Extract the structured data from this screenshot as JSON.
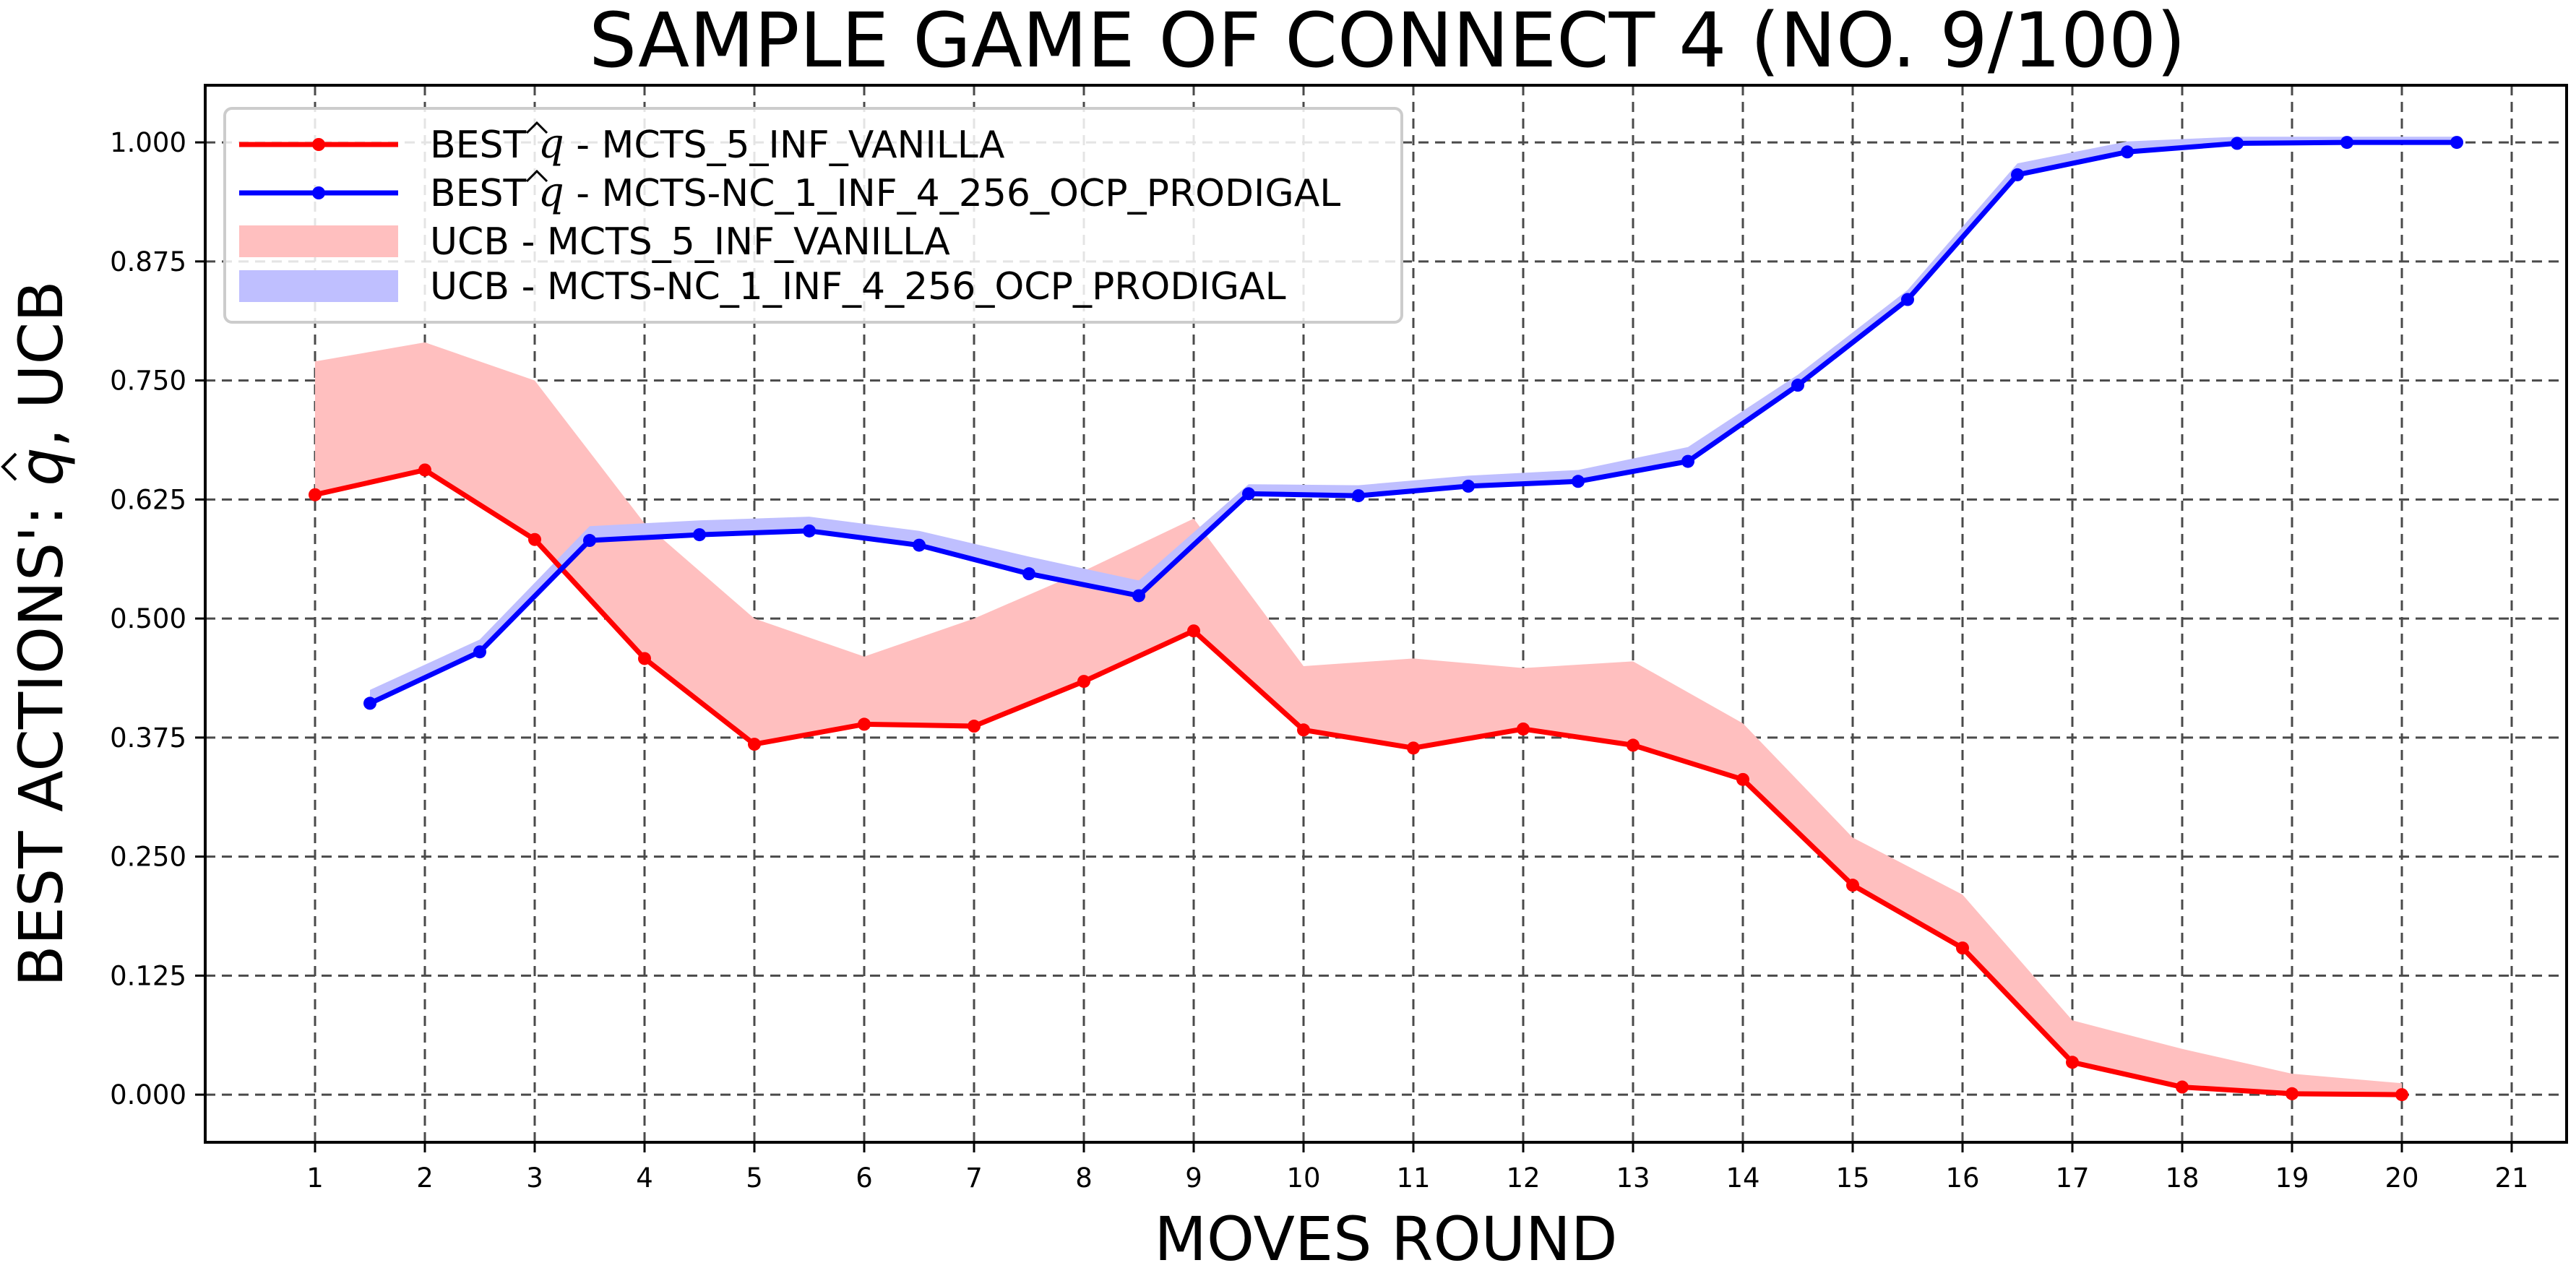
{
  "chart_data": {
    "type": "line",
    "title": "SAMPLE GAME OF CONNECT 4 (NO. 9/100)",
    "xlabel": "MOVES ROUND",
    "ylabel_prefix": "BEST ACTIONS': ",
    "ylabel_symbol": "q",
    "ylabel_suffix": ", UCB",
    "xlim": [
      0.0,
      21.5
    ],
    "ylim": [
      -0.05,
      1.06
    ],
    "x_ticks": [
      1,
      2,
      3,
      4,
      5,
      6,
      7,
      8,
      9,
      10,
      11,
      12,
      13,
      14,
      15,
      16,
      17,
      18,
      19,
      20,
      21
    ],
    "y_ticks": [
      0.0,
      0.125,
      0.25,
      0.375,
      0.5,
      0.625,
      0.75,
      0.875,
      1.0
    ],
    "y_tick_labels": [
      "0.000",
      "0.125",
      "0.250",
      "0.375",
      "0.500",
      "0.625",
      "0.750",
      "0.875",
      "1.000"
    ],
    "grid": true,
    "legend_position": "upper-left",
    "series": [
      {
        "legend_prefix": "BEST ",
        "legend_symbol": "q",
        "legend_suffix": " - MCTS_5_INF_VANILLA",
        "color": "#ff0000",
        "kind": "line",
        "x": [
          1,
          2,
          3,
          4,
          5,
          6,
          7,
          8,
          9,
          10,
          11,
          12,
          13,
          14,
          15,
          16,
          17,
          18,
          19,
          20
        ],
        "y": [
          0.63,
          0.656,
          0.583,
          0.458,
          0.368,
          0.389,
          0.387,
          0.434,
          0.487,
          0.383,
          0.364,
          0.384,
          0.367,
          0.331,
          0.22,
          0.154,
          0.034,
          0.008,
          0.001,
          0.0
        ]
      },
      {
        "legend_prefix": "BEST ",
        "legend_symbol": "q",
        "legend_suffix": " - MCTS-NC_1_INF_4_256_OCP_PRODIGAL",
        "color": "#0000ff",
        "kind": "line",
        "x": [
          1.5,
          2.5,
          3.5,
          4.5,
          5.5,
          6.5,
          7.5,
          8.5,
          9.5,
          10.5,
          11.5,
          12.5,
          13.5,
          14.5,
          15.5,
          16.5,
          17.5,
          18.5,
          19.5,
          20.5
        ],
        "y": [
          0.411,
          0.465,
          0.582,
          0.588,
          0.592,
          0.577,
          0.547,
          0.524,
          0.631,
          0.629,
          0.639,
          0.644,
          0.665,
          0.745,
          0.835,
          0.966,
          0.99,
          0.999,
          1.0,
          1.0
        ]
      },
      {
        "legend": "UCB - MCTS_5_INF_VANILLA",
        "color": "#ffbfbf",
        "kind": "band",
        "x": [
          1,
          2,
          3,
          4,
          5,
          6,
          7,
          8,
          9,
          10,
          11,
          12,
          13,
          14,
          15,
          16,
          17,
          18,
          19,
          20
        ],
        "y_low": [
          0.63,
          0.656,
          0.583,
          0.458,
          0.368,
          0.389,
          0.387,
          0.434,
          0.487,
          0.383,
          0.364,
          0.384,
          0.367,
          0.331,
          0.22,
          0.154,
          0.034,
          0.008,
          0.001,
          0.0
        ],
        "y_high": [
          0.77,
          0.79,
          0.75,
          0.6,
          0.5,
          0.46,
          0.5,
          0.55,
          0.605,
          0.45,
          0.458,
          0.448,
          0.455,
          0.39,
          0.27,
          0.21,
          0.078,
          0.048,
          0.022,
          0.012
        ]
      },
      {
        "legend": "UCB - MCTS-NC_1_INF_4_256_OCP_PRODIGAL",
        "color": "#bfbfff",
        "kind": "band",
        "x": [
          1.5,
          2.5,
          3.5,
          4.5,
          5.5,
          6.5,
          7.5,
          8.5,
          9.5,
          10.5,
          11.5,
          12.5,
          13.5,
          14.5,
          15.5,
          16.5,
          17.5,
          18.5,
          19.5,
          20.5
        ],
        "y_low": [
          0.411,
          0.465,
          0.582,
          0.588,
          0.592,
          0.577,
          0.547,
          0.524,
          0.631,
          0.629,
          0.639,
          0.644,
          0.665,
          0.745,
          0.835,
          0.966,
          0.99,
          0.999,
          1.0,
          1.0
        ],
        "y_high": [
          0.425,
          0.478,
          0.597,
          0.603,
          0.607,
          0.592,
          0.565,
          0.54,
          0.641,
          0.64,
          0.65,
          0.656,
          0.68,
          0.756,
          0.845,
          0.978,
          1.001,
          1.006,
          1.006,
          1.006
        ]
      }
    ]
  }
}
